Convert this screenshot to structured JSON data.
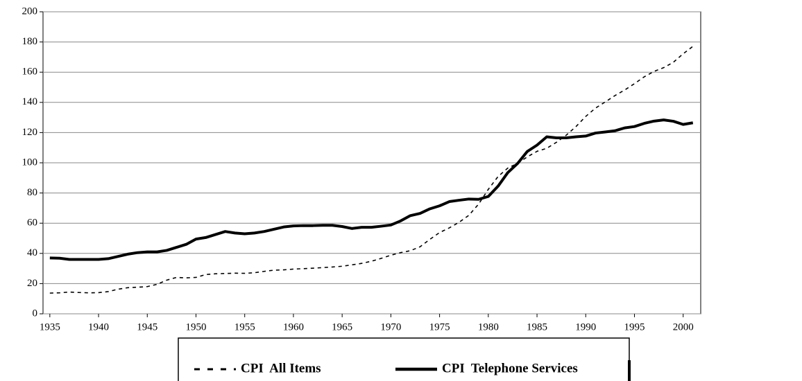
{
  "chart_data": {
    "type": "line",
    "x": [
      1935,
      1936,
      1937,
      1938,
      1939,
      1940,
      1941,
      1942,
      1943,
      1944,
      1945,
      1946,
      1947,
      1948,
      1949,
      1950,
      1951,
      1952,
      1953,
      1954,
      1955,
      1956,
      1957,
      1958,
      1959,
      1960,
      1961,
      1962,
      1963,
      1964,
      1965,
      1966,
      1967,
      1968,
      1969,
      1970,
      1971,
      1972,
      1973,
      1974,
      1975,
      1976,
      1977,
      1978,
      1979,
      1980,
      1981,
      1982,
      1983,
      1984,
      1985,
      1986,
      1987,
      1988,
      1989,
      1990,
      1991,
      1992,
      1993,
      1994,
      1995,
      1996,
      1997,
      1998,
      1999,
      2000,
      2001
    ],
    "series": [
      {
        "name": "CPI  All Items",
        "color": "#000000",
        "dash": true,
        "values": [
          13.7,
          13.9,
          14.4,
          14.1,
          13.9,
          14.0,
          14.7,
          16.3,
          17.3,
          17.6,
          18.0,
          19.5,
          22.3,
          24.1,
          23.8,
          24.1,
          26.0,
          26.5,
          26.7,
          26.9,
          26.8,
          27.2,
          28.1,
          28.9,
          29.1,
          29.6,
          29.9,
          30.2,
          30.6,
          31.0,
          31.5,
          32.4,
          33.4,
          34.8,
          36.7,
          38.8,
          40.5,
          41.8,
          44.4,
          49.3,
          53.8,
          56.9,
          60.6,
          65.2,
          72.6,
          82.4,
          90.9,
          96.5,
          99.6,
          103.9,
          107.6,
          109.6,
          113.6,
          118.3,
          124.0,
          130.7,
          136.2,
          140.3,
          144.5,
          148.2,
          152.4,
          156.9,
          160.5,
          163.0,
          166.6,
          172.2,
          177.1
        ]
      },
      {
        "name": "CPI  Telephone Services",
        "color": "#000000",
        "dash": false,
        "values": [
          37,
          36.8,
          36,
          36,
          36,
          36,
          36.5,
          38,
          39.5,
          40.5,
          41,
          41,
          42,
          44,
          46,
          49.5,
          50.5,
          52.5,
          54.5,
          53.5,
          53,
          53.5,
          54.5,
          56,
          57.5,
          58.2,
          58.4,
          58.4,
          58.6,
          58.6,
          57.8,
          56.5,
          57.3,
          57.3,
          58,
          58.8,
          61.5,
          65,
          66.5,
          69.5,
          71.5,
          74.3,
          75.2,
          76,
          75.8,
          77.7,
          84.5,
          93.5,
          99.5,
          107.5,
          111.7,
          117.2,
          116.5,
          116.5,
          117.2,
          117.7,
          119.7,
          120.4,
          121.2,
          123.1,
          124,
          126.1,
          127.6,
          128.4,
          127.5,
          125.4,
          126.5
        ]
      }
    ],
    "xlim": [
      1934.3,
      2001.8
    ],
    "xticks": [
      1935,
      1940,
      1945,
      1950,
      1955,
      1960,
      1965,
      1970,
      1975,
      1980,
      1985,
      1990,
      1995,
      2000
    ],
    "ylim": [
      0,
      200
    ],
    "yticks": [
      0,
      20,
      40,
      60,
      80,
      100,
      120,
      140,
      160,
      180,
      200
    ],
    "grid": true,
    "legend": "bottom"
  }
}
